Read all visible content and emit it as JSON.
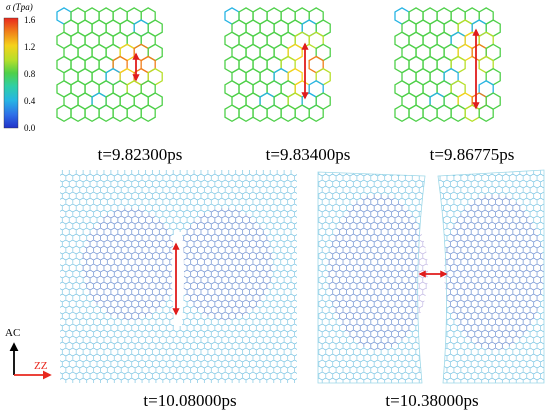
{
  "colorbar": {
    "title": "σ (Tpa)",
    "ticks": [
      "1.6",
      "1.2",
      "0.8",
      "0.4",
      "0.0"
    ],
    "colors": [
      "#e8281e",
      "#f07d1a",
      "#f5d21c",
      "#b7df2a",
      "#4fd04a",
      "#2fcfa6",
      "#27b4e4",
      "#2f6fe8",
      "#2232c8"
    ]
  },
  "panels": [
    {
      "caption": "t=9.82300ps"
    },
    {
      "caption": "t=9.83400ps"
    },
    {
      "caption": "t=9.86775ps"
    },
    {
      "caption": "t=10.08000ps"
    },
    {
      "caption": "t=10.38000ps"
    }
  ],
  "axes": {
    "vertical": "AC",
    "horizontal": "ZZ",
    "vertical_color": "#000000",
    "horizontal_color": "#e8281e"
  },
  "colors": {
    "arrow": "#e01c1c",
    "lattice_main": "#36c7a0",
    "lattice_dense": "#8a6cc6",
    "lattice_dense_edge": "#4bb6d6"
  }
}
